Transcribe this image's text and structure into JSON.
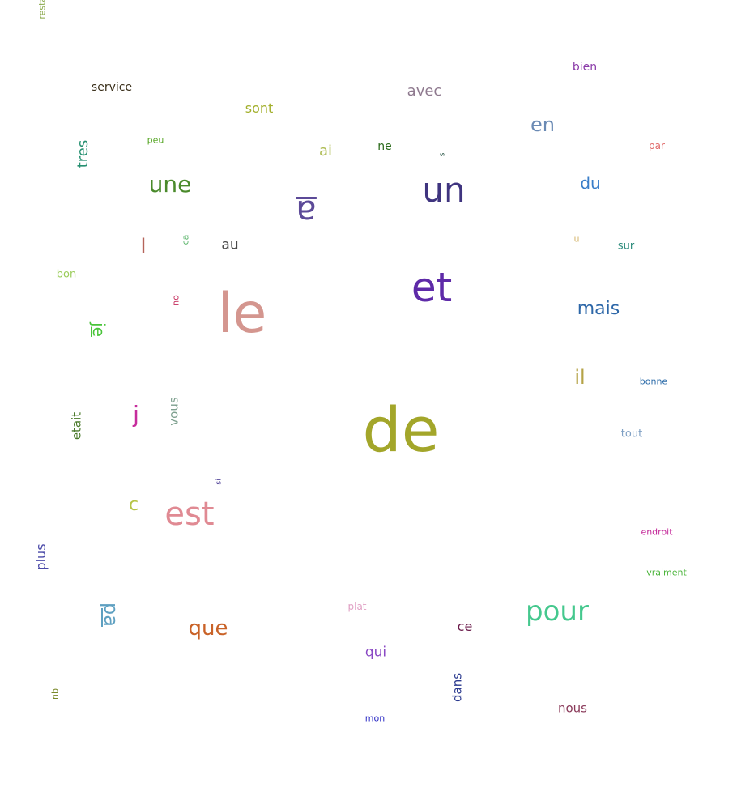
{
  "words": [
    {
      "text": "de",
      "color": "#a3a62a"
    },
    {
      "text": "le",
      "color": "#d4968f"
    },
    {
      "text": "et",
      "color": "#5e2aa8"
    },
    {
      "text": "un",
      "color": "#3f347f"
    },
    {
      "text": "est",
      "color": "#e08a93"
    },
    {
      "text": "pour",
      "color": "#45c88e"
    },
    {
      "text": "une",
      "color": "#4a8a2b"
    },
    {
      "text": "a",
      "color": "#5c4a98"
    },
    {
      "text": "que",
      "color": "#c96227"
    },
    {
      "text": "mais",
      "color": "#2d67a8"
    },
    {
      "text": "en",
      "color": "#6a8ab4"
    },
    {
      "text": "pa",
      "color": "#5ea0c1"
    },
    {
      "text": "du",
      "color": "#3a7ec9"
    },
    {
      "text": "j",
      "color": "#c62c9c"
    },
    {
      "text": "l",
      "color": "#b5645a"
    },
    {
      "text": "il",
      "color": "#b5a347"
    },
    {
      "text": "c",
      "color": "#b6c446"
    },
    {
      "text": "avec",
      "color": "#8f7a8f"
    },
    {
      "text": "je",
      "color": "#49c43a"
    },
    {
      "text": "tres",
      "color": "#269071"
    },
    {
      "text": "sont",
      "color": "#a3b02d"
    },
    {
      "text": "au",
      "color": "#4a4a4a"
    },
    {
      "text": "vous",
      "color": "#7ea08f"
    },
    {
      "text": "ai",
      "color": "#aebc53"
    },
    {
      "text": "qui",
      "color": "#8a49c4"
    },
    {
      "text": "plus",
      "color": "#4a49a8"
    },
    {
      "text": "ce",
      "color": "#6a1a4a"
    },
    {
      "text": "nous",
      "color": "#8a3a5a"
    },
    {
      "text": "dans",
      "color": "#2b3a8f"
    },
    {
      "text": "etait",
      "color": "#4a7a2a"
    },
    {
      "text": "service",
      "color": "#3a2f1a"
    },
    {
      "text": "bien",
      "color": "#8a3aa8"
    },
    {
      "text": "ne",
      "color": "#2a6a1a"
    },
    {
      "text": "tout",
      "color": "#7fa0c4"
    },
    {
      "text": "bon",
      "color": "#9acc5a"
    },
    {
      "text": "sur",
      "color": "#2a8a7a"
    },
    {
      "text": "plat",
      "color": "#e0a0c4"
    },
    {
      "text": "par",
      "color": "#e06a6a"
    },
    {
      "text": "peu",
      "color": "#5aa82a"
    },
    {
      "text": "ou",
      "color": "#c42a5a"
    },
    {
      "text": "ca",
      "color": "#5ab46a"
    },
    {
      "text": "qu",
      "color": "#7a8a2a"
    },
    {
      "text": "n",
      "color": "#d4b46a"
    },
    {
      "text": "endroit",
      "color": "#c42a9a"
    },
    {
      "text": "vraiment",
      "color": "#4ab43a"
    },
    {
      "text": "bonne",
      "color": "#2a6aa8"
    },
    {
      "text": "mon",
      "color": "#2a2ac4"
    },
    {
      "text": "si",
      "color": "#3a2a8a"
    },
    {
      "text": "s",
      "color": "#1a4a3a"
    },
    {
      "text": "restaurant",
      "color": "#8aa84a"
    }
  ]
}
